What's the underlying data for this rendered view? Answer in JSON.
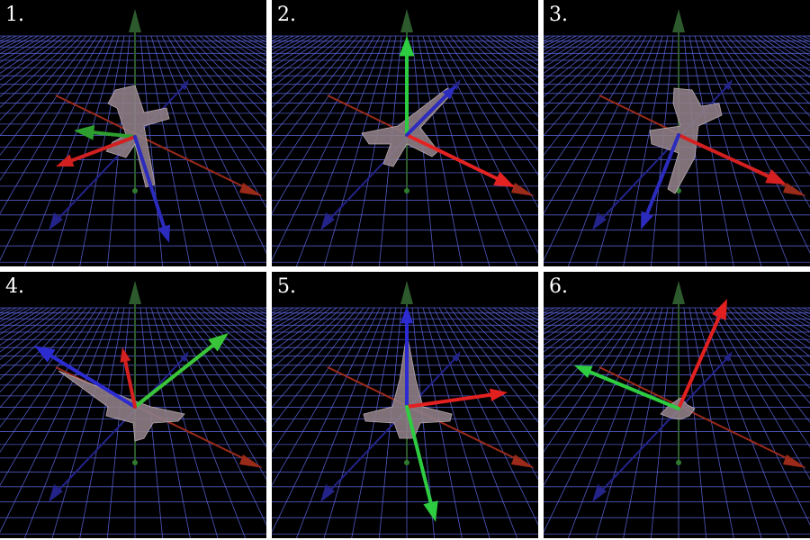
{
  "figure": {
    "panels": [
      {
        "label": "1.",
        "arrows": [
          {
            "axis": "green",
            "color": "#2e9e2e",
            "dir": "toward-left"
          },
          {
            "axis": "red",
            "color": "#d22020",
            "dir": "down-left"
          },
          {
            "axis": "blue",
            "color": "#2b2bbd",
            "dir": "down"
          }
        ]
      },
      {
        "label": "2.",
        "arrows": [
          {
            "axis": "green",
            "color": "#2ecc40",
            "dir": "up"
          },
          {
            "axis": "red",
            "color": "#e52222",
            "dir": "down-right"
          },
          {
            "axis": "blue",
            "color": "#2b2bbd",
            "dir": "up-right"
          }
        ]
      },
      {
        "label": "3.",
        "arrows": [
          {
            "axis": "red",
            "color": "#d42020",
            "dir": "down-right"
          },
          {
            "axis": "blue",
            "color": "#2b2bbd",
            "dir": "down-left"
          }
        ]
      },
      {
        "label": "4.",
        "arrows": [
          {
            "axis": "green",
            "color": "#39c43a",
            "dir": "up-right"
          },
          {
            "axis": "blue",
            "color": "#2b2bd0",
            "dir": "up-left"
          },
          {
            "axis": "red",
            "color": "#d42020",
            "dir": "up"
          }
        ]
      },
      {
        "label": "5.",
        "arrows": [
          {
            "axis": "blue",
            "color": "#2b2bd0",
            "dir": "up"
          },
          {
            "axis": "red",
            "color": "#e22020",
            "dir": "right"
          },
          {
            "axis": "green",
            "color": "#2ecc40",
            "dir": "down"
          }
        ]
      },
      {
        "label": "6.",
        "arrows": [
          {
            "axis": "red",
            "color": "#e22020",
            "dir": "up-right"
          },
          {
            "axis": "green",
            "color": "#2ecc40",
            "dir": "left"
          }
        ]
      }
    ],
    "colors": {
      "background": "#000000",
      "grid": "#5a63d8",
      "world_axis_red": "#9a2a1a",
      "world_axis_blue": "#23238a",
      "world_axis_green": "#2c5a2c",
      "aircraft": "#8e7e86",
      "separator": "#ffffff"
    },
    "elements": {
      "world_axes": "three fixed world axes (red, green, blue) on a perspective grid",
      "aircraft": "fighter jet model at origin",
      "local_axes": "bright colored arrows showing the aircraft's local frame"
    }
  }
}
